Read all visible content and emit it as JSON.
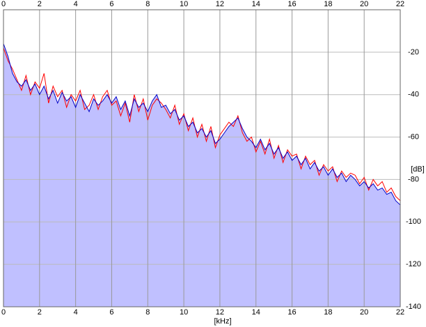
{
  "chart_data": {
    "type": "line",
    "x_label": "[kHz]",
    "y_label": "[dB]",
    "xlim": [
      0,
      22
    ],
    "xticks": [
      0,
      2,
      4,
      6,
      8,
      10,
      12,
      14,
      16,
      18,
      20,
      22
    ],
    "ylim": [
      -140,
      0
    ],
    "yticks": [
      -20,
      -40,
      -60,
      -80,
      -100,
      -120,
      -140
    ],
    "grid": true,
    "fill_color": "#c0c0ff",
    "x": [
      0,
      0.25,
      0.5,
      0.75,
      1,
      1.25,
      1.5,
      1.75,
      2,
      2.25,
      2.5,
      2.75,
      3,
      3.25,
      3.5,
      3.75,
      4,
      4.25,
      4.5,
      4.75,
      5,
      5.25,
      5.5,
      5.75,
      6,
      6.25,
      6.5,
      6.75,
      7,
      7.25,
      7.5,
      7.75,
      8,
      8.25,
      8.5,
      8.75,
      9,
      9.25,
      9.5,
      9.75,
      10,
      10.25,
      10.5,
      10.75,
      11,
      11.25,
      11.5,
      11.75,
      12,
      12.25,
      12.5,
      12.75,
      13,
      13.25,
      13.5,
      13.75,
      14,
      14.25,
      14.5,
      14.75,
      15,
      15.25,
      15.5,
      15.75,
      16,
      16.25,
      16.5,
      16.75,
      17,
      17.25,
      17.5,
      17.75,
      18,
      18.25,
      18.5,
      18.75,
      19,
      19.25,
      19.5,
      19.75,
      20,
      20.25,
      20.5,
      20.75,
      21,
      21.25,
      21.5,
      21.75,
      22
    ],
    "series": [
      {
        "color": "#ff0000",
        "values": [
          -18,
          -24,
          -28,
          -33,
          -38,
          -31,
          -40,
          -34,
          -37,
          -30,
          -44,
          -36,
          -41,
          -38,
          -46,
          -40,
          -43,
          -38,
          -47,
          -45,
          -40,
          -47,
          -41,
          -38,
          -45,
          -43,
          -50,
          -44,
          -53,
          -40,
          -48,
          -42,
          -52,
          -45,
          -42,
          -44,
          -47,
          -51,
          -45,
          -54,
          -49,
          -57,
          -51,
          -60,
          -54,
          -62,
          -55,
          -65,
          -59,
          -56,
          -53,
          -55,
          -50,
          -58,
          -62,
          -60,
          -67,
          -62,
          -68,
          -61,
          -70,
          -64,
          -72,
          -66,
          -69,
          -68,
          -75,
          -69,
          -73,
          -71,
          -78,
          -73,
          -76,
          -74,
          -81,
          -76,
          -79,
          -77,
          -78,
          -82,
          -79,
          -85,
          -80,
          -83,
          -81,
          -86,
          -84,
          -88,
          -90
        ]
      },
      {
        "color": "#0000c8",
        "values": [
          -16,
          -22,
          -30,
          -34,
          -36,
          -33,
          -38,
          -35,
          -40,
          -36,
          -42,
          -38,
          -44,
          -39,
          -43,
          -41,
          -46,
          -40,
          -44,
          -48,
          -42,
          -45,
          -43,
          -40,
          -44,
          -41,
          -47,
          -43,
          -50,
          -42,
          -46,
          -44,
          -48,
          -43,
          -40,
          -46,
          -45,
          -49,
          -47,
          -52,
          -50,
          -55,
          -53,
          -58,
          -56,
          -60,
          -57,
          -63,
          -61,
          -58,
          -55,
          -53,
          -51,
          -56,
          -60,
          -62,
          -65,
          -61,
          -66,
          -63,
          -68,
          -65,
          -70,
          -67,
          -71,
          -69,
          -73,
          -70,
          -75,
          -72,
          -76,
          -74,
          -78,
          -75,
          -79,
          -77,
          -81,
          -78,
          -80,
          -83,
          -81,
          -84,
          -82,
          -85,
          -84,
          -87,
          -86,
          -90,
          -92
        ]
      }
    ]
  }
}
